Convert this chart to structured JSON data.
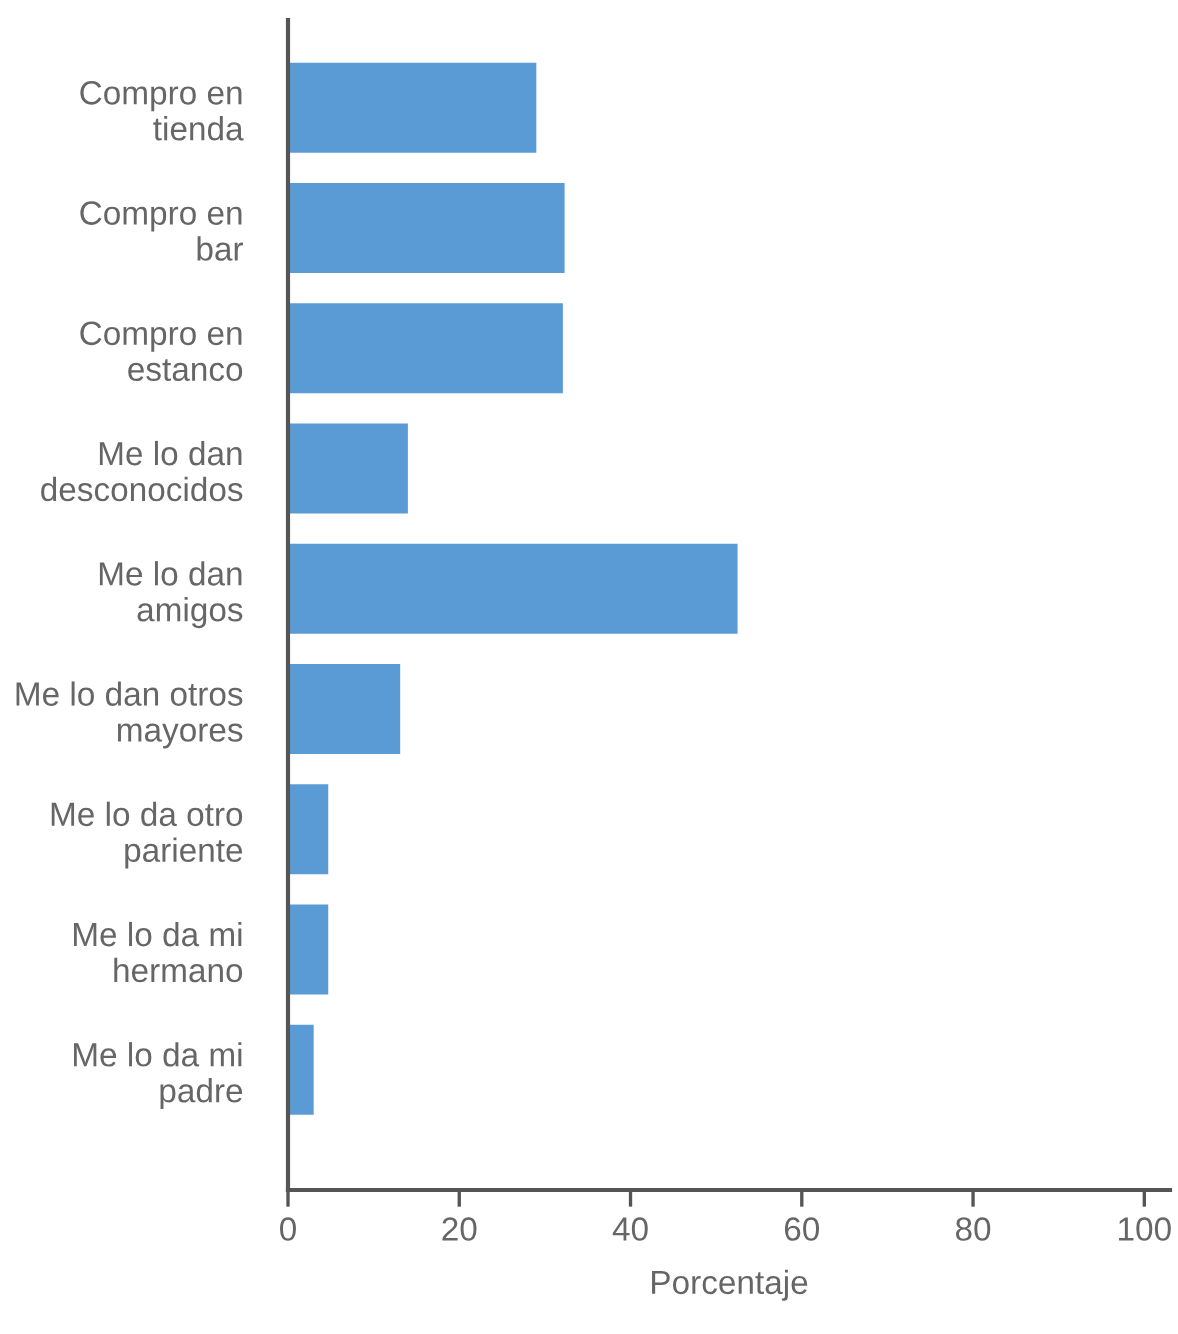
{
  "chart_data": {
    "type": "bar",
    "orientation": "horizontal",
    "xlabel": "Porcentaje",
    "categories": [
      "Compro en\ntienda",
      "Compro en\nbar",
      "Compro en\nestanco",
      "Me lo dan\ndesconocidos",
      "Me lo dan\namigos",
      "Me lo dan otros\nmayores",
      "Me lo da otro\npariente",
      "Me lo da mi\nhermano",
      "Me lo da mi\npadre"
    ],
    "values": [
      29.0,
      32.3,
      32.1,
      14.0,
      52.5,
      13.1,
      4.7,
      4.7,
      3.0
    ],
    "color": "#5b9bd5",
    "xlim": [
      0,
      103
    ],
    "xticks": [
      0,
      20,
      40,
      60,
      80,
      100
    ],
    "grid": false,
    "legend": false
  }
}
